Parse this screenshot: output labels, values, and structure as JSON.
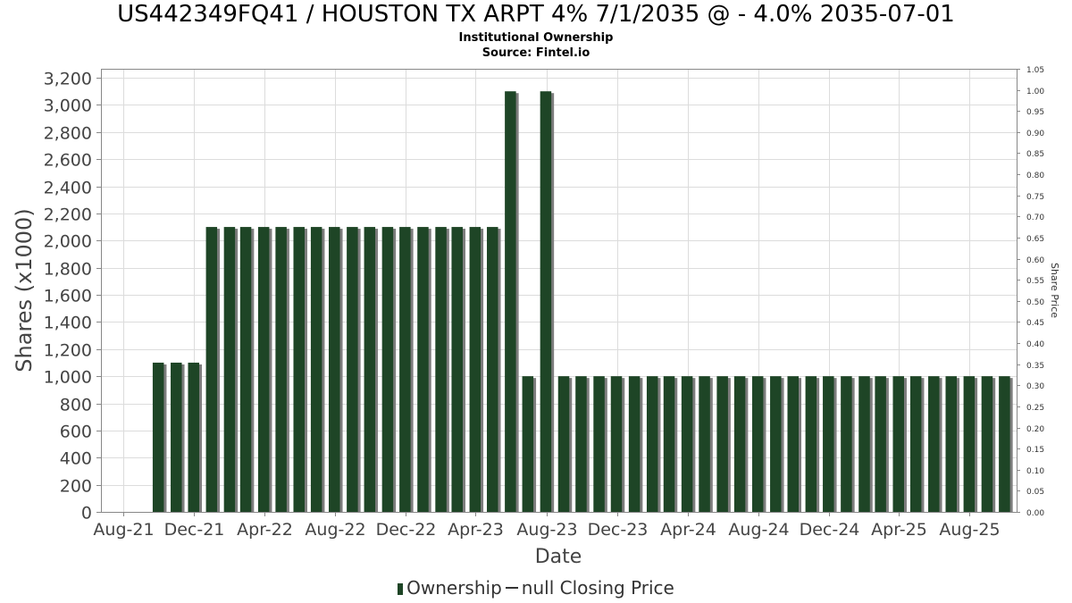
{
  "title": "US442349FQ41 / HOUSTON TX ARPT 4% 7/1/2035 @ - 4.0% 2035-07-01",
  "subtitle": "Institutional Ownership",
  "source": "Source: Fintel.io",
  "legend": {
    "ownership": "Ownership",
    "price": "null Closing Price"
  },
  "colors": {
    "bar": "#1e4526",
    "bar_shadow": "#7d7d7d",
    "grid": "#dcdcdc",
    "axis": "#888888"
  },
  "chart_data": {
    "type": "bar",
    "xlabel": "Date",
    "ylabel": "Shares (x1000)",
    "y2label": "Share Price",
    "ylim": [
      0,
      3266
    ],
    "y2lim": [
      0,
      1.05
    ],
    "yticks": [
      0,
      200,
      400,
      600,
      800,
      1000,
      1200,
      1400,
      1600,
      1800,
      2000,
      2200,
      2400,
      2600,
      2800,
      3000,
      3200
    ],
    "ytick_labels": [
      "0",
      "200",
      "400",
      "600",
      "800",
      "1,000",
      "1,200",
      "1,400",
      "1,600",
      "1,800",
      "2,000",
      "2,200",
      "2,400",
      "2,600",
      "2,800",
      "3,000",
      "3,200"
    ],
    "y2ticks": [
      0,
      0.05,
      0.1,
      0.15,
      0.2,
      0.25,
      0.3,
      0.35,
      0.4,
      0.45,
      0.5,
      0.55,
      0.6,
      0.65,
      0.7,
      0.75,
      0.8,
      0.85,
      0.9,
      0.95,
      1.0,
      1.05
    ],
    "y2tick_labels": [
      "0.00",
      "0.05",
      "0.10",
      "0.15",
      "0.20",
      "0.25",
      "0.30",
      "0.35",
      "0.40",
      "0.45",
      "0.50",
      "0.55",
      "0.60",
      "0.65",
      "0.70",
      "0.75",
      "0.80",
      "0.85",
      "0.90",
      "0.95",
      "1.00",
      "1.05"
    ],
    "xlim": [
      "2021-06-23",
      "2025-10-21"
    ],
    "xticks": [
      "2021-08-01",
      "2021-12-01",
      "2022-04-01",
      "2022-08-01",
      "2022-12-01",
      "2023-04-01",
      "2023-08-01",
      "2023-12-01",
      "2024-04-01",
      "2024-08-01",
      "2024-12-01",
      "2025-04-01",
      "2025-08-01"
    ],
    "xtick_labels": [
      "Aug-21",
      "Dec-21",
      "Apr-22",
      "Aug-22",
      "Dec-22",
      "Apr-23",
      "Aug-23",
      "Dec-23",
      "Apr-24",
      "Aug-24",
      "Dec-24",
      "Apr-25",
      "Aug-25"
    ],
    "grid": true,
    "legend_position": "bottom",
    "series": [
      {
        "name": "Ownership",
        "x": [
          "2021-09-30",
          "2021-10-31",
          "2021-11-30",
          "2021-12-31",
          "2022-01-31",
          "2022-02-28",
          "2022-03-31",
          "2022-04-30",
          "2022-05-31",
          "2022-06-30",
          "2022-07-31",
          "2022-08-31",
          "2022-09-30",
          "2022-10-31",
          "2022-11-30",
          "2022-12-31",
          "2023-01-31",
          "2023-02-28",
          "2023-03-31",
          "2023-04-30",
          "2023-05-31",
          "2023-06-30",
          "2023-07-31",
          "2023-08-31",
          "2023-09-30",
          "2023-10-31",
          "2023-11-30",
          "2023-12-31",
          "2024-01-31",
          "2024-02-29",
          "2024-03-31",
          "2024-04-30",
          "2024-05-31",
          "2024-06-30",
          "2024-07-31",
          "2024-08-31",
          "2024-09-30",
          "2024-10-31",
          "2024-11-30",
          "2024-12-31",
          "2025-01-31",
          "2025-02-28",
          "2025-03-31",
          "2025-04-30",
          "2025-05-31",
          "2025-06-30",
          "2025-07-31",
          "2025-08-31",
          "2025-09-30"
        ],
        "values": [
          1100,
          1100,
          1100,
          2100,
          2100,
          2100,
          2100,
          2100,
          2100,
          2100,
          2100,
          2100,
          2100,
          2100,
          2100,
          2100,
          2100,
          2100,
          2100,
          2100,
          3100,
          1000,
          3100,
          1000,
          1000,
          1000,
          1000,
          1000,
          1000,
          1000,
          1000,
          1000,
          1000,
          1000,
          1000,
          1000,
          1000,
          1000,
          1000,
          1000,
          1000,
          1000,
          1000,
          1000,
          1000,
          1000,
          1000,
          1000,
          1000
        ]
      }
    ]
  }
}
